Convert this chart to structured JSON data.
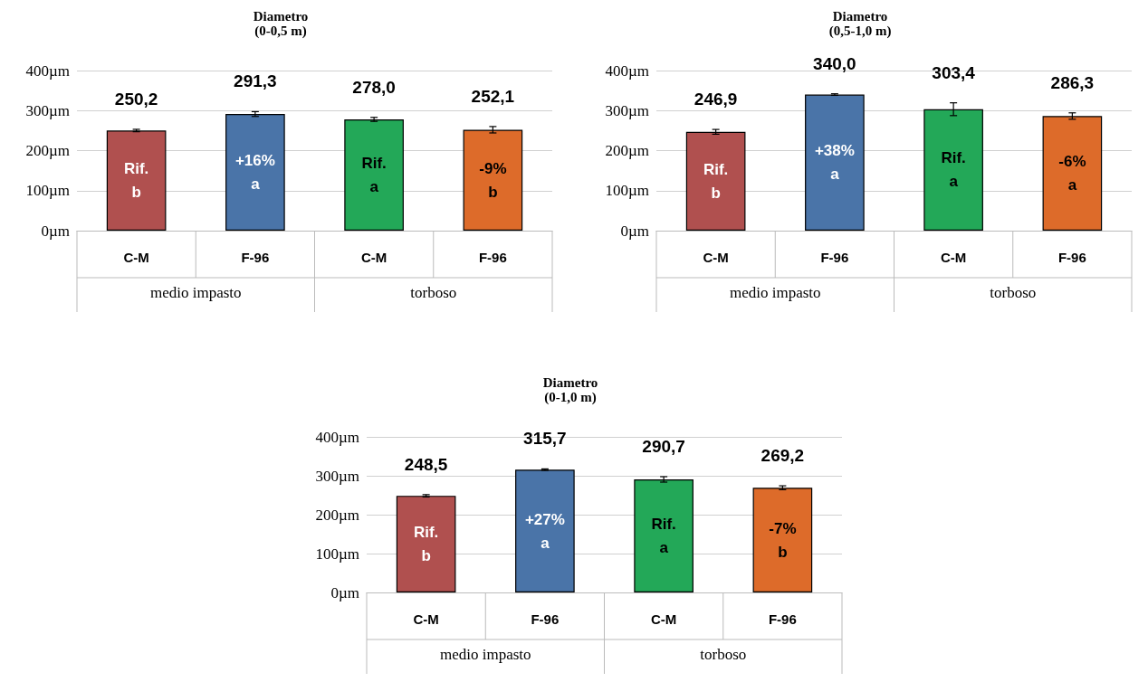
{
  "chart_data": [
    {
      "type": "bar",
      "title": "Diametro\n(0-0,5 m)",
      "categories": [
        "C-M",
        "F-96",
        "C-M",
        "F-96"
      ],
      "values": [
        250.2,
        291.3,
        278.0,
        252.1
      ],
      "colors": [
        "#b0504f",
        "#4a74a8",
        "#23a858",
        "#dd6b2a"
      ],
      "errors": [
        3,
        6,
        5,
        8
      ],
      "value_labels": [
        "250,2",
        "291,3",
        "278,0",
        "252,1"
      ],
      "annotations": [
        "Rif.\nb",
        "+16%\na",
        "Rif.\na",
        "-9%\nb",
        "medio impasto",
        "torboso"
      ],
      "ylim": [
        0,
        400
      ],
      "yticks": [
        {
          "value": 0,
          "label": "0µm"
        },
        {
          "value": 100,
          "label": "100µm"
        },
        {
          "value": 200,
          "label": "200µm"
        },
        {
          "value": 300,
          "label": "300µm"
        },
        {
          "value": 400,
          "label": "400µm"
        }
      ],
      "grid": "y"
    },
    {
      "type": "bar",
      "title": "Diametro\n(0,5-1,0 m)",
      "categories": [
        "C-M",
        "F-96",
        "C-M",
        "F-96"
      ],
      "values": [
        246.9,
        340.0,
        303.4,
        286.3
      ],
      "colors": [
        "#b0504f",
        "#4a74a8",
        "#23a858",
        "#dd6b2a"
      ],
      "errors": [
        6,
        2,
        16,
        8
      ],
      "value_labels": [
        "246,9",
        "340,0",
        "303,4",
        "286,3"
      ],
      "annotations": [
        "Rif.\nb",
        "+38%\na",
        "Rif.\na",
        "-6%\na",
        "medio impasto",
        "torboso"
      ],
      "ylim": [
        0,
        400
      ],
      "yticks": [
        {
          "value": 0,
          "label": "0µm"
        },
        {
          "value": 100,
          "label": "100µm"
        },
        {
          "value": 200,
          "label": "200µm"
        },
        {
          "value": 300,
          "label": "300µm"
        },
        {
          "value": 400,
          "label": "400µm"
        }
      ],
      "grid": "y"
    },
    {
      "type": "bar",
      "title": "Diametro\n(0-1,0 m)",
      "categories": [
        "C-M",
        "F-96",
        "C-M",
        "F-96"
      ],
      "values": [
        248.5,
        315.7,
        290.7,
        269.2
      ],
      "colors": [
        "#b0504f",
        "#4a74a8",
        "#23a858",
        "#dd6b2a"
      ],
      "errors": [
        3,
        2,
        7,
        5
      ],
      "value_labels": [
        "248,5",
        "315,7",
        "290,7",
        "269,2"
      ],
      "annotations": [
        "Rif.\nb",
        "+27%\na",
        "Rif.\na",
        "-7%\nb",
        "medio impasto",
        "torboso"
      ],
      "ylim": [
        0,
        400
      ],
      "yticks": [
        {
          "value": 0,
          "label": "0µm"
        },
        {
          "value": 100,
          "label": "100µm"
        },
        {
          "value": 200,
          "label": "200µm"
        },
        {
          "value": 300,
          "label": "300µm"
        },
        {
          "value": 400,
          "label": "400µm"
        }
      ],
      "grid": "y"
    }
  ]
}
